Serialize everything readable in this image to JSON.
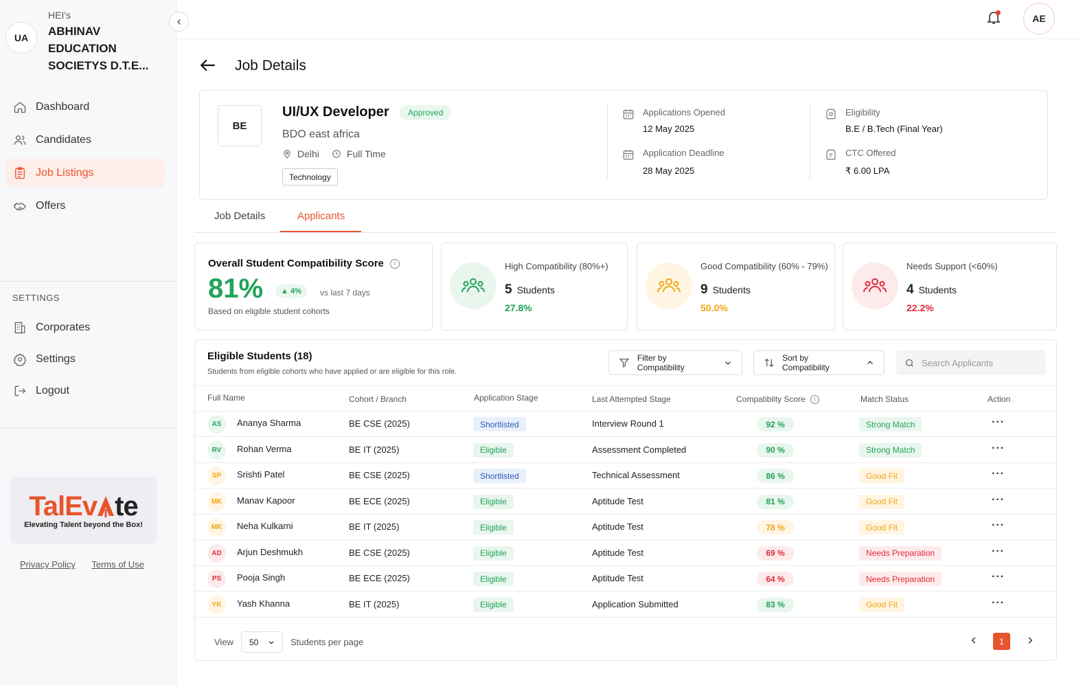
{
  "org": {
    "avatar_initials": "UA",
    "prefix": "HEI's",
    "name": "ABHINAV EDUCATION SOCIETYS D.T.E..."
  },
  "nav": {
    "items": [
      {
        "label": "Dashboard",
        "icon": "home-icon"
      },
      {
        "label": "Candidates",
        "icon": "users-icon"
      },
      {
        "label": "Job Listings",
        "icon": "clipboard-icon",
        "active": true
      },
      {
        "label": "Offers",
        "icon": "handshake-icon"
      }
    ],
    "settings_heading": "SETTINGS",
    "settings_items": [
      {
        "label": "Corporates",
        "icon": "building-icon"
      },
      {
        "label": "Settings",
        "icon": "gear-icon"
      },
      {
        "label": "Logout",
        "icon": "logout-icon"
      }
    ]
  },
  "brand": {
    "logo_part1": "TalEv",
    "logo_part2": "te",
    "tagline": "Elevating Talent beyond the Box!"
  },
  "footer": {
    "privacy": "Privacy Policy",
    "terms": "Terms of Use"
  },
  "topbar": {
    "user_initials": "AE",
    "has_notification": true
  },
  "page": {
    "title": "Job Details"
  },
  "job": {
    "logo_initials": "BE",
    "title": "UI/UX Developer",
    "status": "Approved",
    "company": "BDO east africa",
    "location": "Delhi",
    "type": "Full Time",
    "tag": "Technology",
    "opened_label": "Applications Opened",
    "opened_value": "12 May 2025",
    "deadline_label": "Application Deadline",
    "deadline_value": "28 May 2025",
    "eligibility_label": "Eligibility",
    "eligibility_value": "B.E / B.Tech (Final Year)",
    "ctc_label": "CTC Offered",
    "ctc_value": "₹ 6.00 LPA"
  },
  "tabs": [
    {
      "label": "Job Details"
    },
    {
      "label": "Applicants",
      "active": true
    }
  ],
  "score": {
    "title": "Overall Student Compatibility Score",
    "value": "81%",
    "delta": "▲ 4%",
    "vs": "vs last 7 days",
    "sub": "Based on eligible student cohorts"
  },
  "stats": [
    {
      "label": "High Compatibility (80%+)",
      "count": "5",
      "unit": "Students",
      "pct": "27.8%",
      "color": "#21a35a",
      "bg": "#e9f6ee"
    },
    {
      "label": "Good Compatibility (60% - 79%)",
      "count": "9",
      "unit": "Students",
      "pct": "50.0%",
      "color": "#f2a516",
      "bg": "#fff5e2"
    },
    {
      "label": "Needs Support (<60%)",
      "count": "4",
      "unit": "Students",
      "pct": "22.2%",
      "color": "#e02b3a",
      "bg": "#fdebec"
    }
  ],
  "table": {
    "title": "Eligible Students (18)",
    "subtitle": "Students from eligible cohorts who have applied or are eligible for this role.",
    "filter_label": "Filter by Compatibility",
    "sort_label": "Sort by Compatibility",
    "search_placeholder": "Search Applicants",
    "headers": [
      "Full Name",
      "Cohort / Branch",
      "Application Stage",
      "Last Attempted Stage",
      "Compatiblity Score",
      "Match Status",
      "Action"
    ],
    "rows": [
      {
        "initials": "AS",
        "name": "Ananya Sharma",
        "cohort": "BE CSE (2025)",
        "stage": "Shortlisted",
        "last": "Interview Round 1",
        "score": "92 %",
        "match": "Strong Match"
      },
      {
        "initials": "RV",
        "name": "Rohan Verma",
        "cohort": "BE IT (2025)",
        "stage": "Eligible",
        "last": "Assessment Completed",
        "score": "90 %",
        "match": "Strong Match"
      },
      {
        "initials": "SP",
        "name": "Srishti Patel",
        "cohort": "BE CSE (2025)",
        "stage": "Shortlisted",
        "last": "Technical Assessment",
        "score": "86 %",
        "match": "Good Fit"
      },
      {
        "initials": "MK",
        "name": "Manav Kapoor",
        "cohort": "BE ECE (2025)",
        "stage": "Eligible",
        "last": "Aptitude Test",
        "score": "81 %",
        "match": "Good Fit"
      },
      {
        "initials": "MK",
        "name": "Neha Kulkarni",
        "cohort": "BE IT (2025)",
        "stage": "Eligible",
        "last": "Aptitude Test",
        "score": "78 %",
        "match": "Good Fit"
      },
      {
        "initials": "AD",
        "name": "Arjun Deshmukh",
        "cohort": "BE CSE (2025)",
        "stage": "Eligible",
        "last": "Aptitude Test",
        "score": "69 %",
        "match": "Needs Preparation"
      },
      {
        "initials": "PS",
        "name": "Pooja Singh",
        "cohort": "BE ECE (2025)",
        "stage": "Eligible",
        "last": "Aptitude Test",
        "score": "64 %",
        "match": "Needs Preparation"
      },
      {
        "initials": "YK",
        "name": "Yash Khanna",
        "cohort": "BE IT (2025)",
        "stage": "Eligible",
        "last": "Application Submitted",
        "score": "83 %",
        "match": "Good Fit"
      }
    ],
    "view_label": "View",
    "per_page": "50",
    "per_page_label": "Students per page",
    "current_page": "1"
  }
}
